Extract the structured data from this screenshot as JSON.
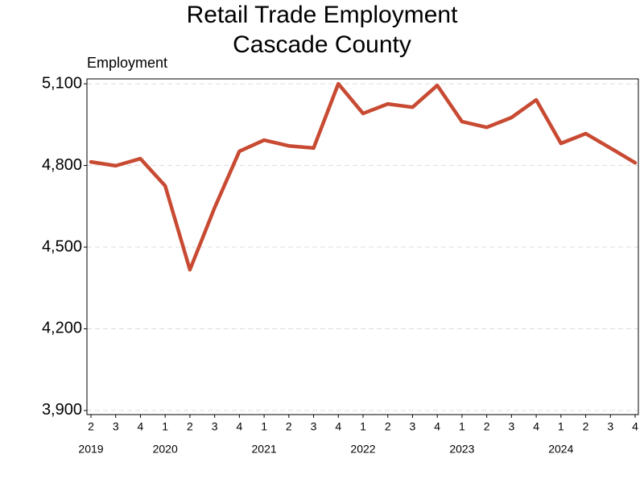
{
  "chart_data": {
    "type": "line",
    "title": "Retail Trade Employment",
    "subtitle": "Cascade County",
    "y_label": "Employment",
    "categories": [
      "2",
      "3",
      "4",
      "1",
      "2",
      "3",
      "4",
      "1",
      "2",
      "3",
      "4",
      "1",
      "2",
      "3",
      "4",
      "1",
      "2",
      "3",
      "4",
      "1",
      "2",
      "3",
      "4"
    ],
    "years": [
      "2019",
      null,
      null,
      "2020",
      null,
      null,
      null,
      "2021",
      null,
      null,
      null,
      "2022",
      null,
      null,
      null,
      "2023",
      null,
      null,
      null,
      "2024",
      null,
      null,
      null
    ],
    "values": [
      4813,
      4799,
      4825,
      4725,
      4417,
      4645,
      4852,
      4893,
      4872,
      4864,
      5100,
      4991,
      5026,
      5014,
      5094,
      4961,
      4940,
      4976,
      5041,
      4881,
      4917,
      4864,
      4810
    ],
    "color": "#c84a32",
    "ylim": [
      3885,
      5118
    ],
    "yticks": [
      {
        "value": 3900,
        "label": "3,900"
      },
      {
        "value": 4200,
        "label": "4,200"
      },
      {
        "value": 4500,
        "label": "4,500"
      },
      {
        "value": 4800,
        "label": "4,800"
      },
      {
        "value": 5100,
        "label": "5,100"
      }
    ],
    "grid": true
  }
}
